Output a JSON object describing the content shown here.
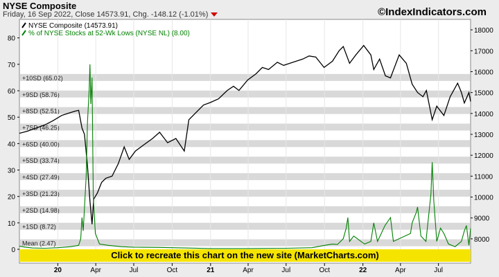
{
  "header": {
    "title": "NYSE Composite",
    "subtitle": "Friday, 16 Sep 2022, Close 14573.91, Chg. -148.12 (-1.01%)",
    "brand": "©IndexIndicators.com"
  },
  "banner": {
    "label": "Click to recreate this chart on the new site (MarketCharts.com)"
  },
  "colors": {
    "nyse": "#000000",
    "pct": "#008000",
    "band_fill": "#d9d9d9",
    "plot_bg": "#ffffff",
    "page_bg": "#ececec",
    "banner": "#f5e400",
    "down_arrow": "#d00000"
  },
  "chart_data": {
    "type": "line",
    "x_ticks": [
      "20",
      "Apr",
      "Jul",
      "Oct",
      "21",
      "Apr",
      "Jul",
      "Oct",
      "22",
      "Apr",
      "Jul"
    ],
    "x_tick_bold": [
      true,
      false,
      false,
      false,
      true,
      false,
      false,
      false,
      true,
      false,
      false
    ],
    "x_tick_dates": [
      "2020-01-01",
      "2020-04-01",
      "2020-07-01",
      "2020-10-01",
      "2021-01-01",
      "2021-04-01",
      "2021-07-01",
      "2021-10-01",
      "2022-01-01",
      "2022-04-01",
      "2022-07-01"
    ],
    "x_range": [
      "2019-10-01",
      "2022-09-16"
    ],
    "left_axis": {
      "ylim": [
        0,
        87
      ],
      "ticks": [
        0,
        10,
        20,
        30,
        40,
        50,
        60,
        70,
        80
      ]
    },
    "right_axis": {
      "ylim": [
        7500,
        18500
      ],
      "ticks": [
        8000,
        9000,
        10000,
        11000,
        12000,
        13000,
        14000,
        15000,
        16000,
        17000,
        18000
      ]
    },
    "legend": [
      {
        "label": "NYSE Composite (14573.91)",
        "color": "#000000"
      },
      {
        "label": "% of NYSE Stocks at 52-Wk Lows (NYSE NL) (8.00)",
        "color": "#008000"
      }
    ],
    "bands": [
      {
        "label": "Mean (2.47)",
        "value": 2.47
      },
      {
        "label": "+1SD (8.72)",
        "value": 8.72
      },
      {
        "label": "+2SD (14.98)",
        "value": 14.98
      },
      {
        "label": "+3SD (21.23)",
        "value": 21.23
      },
      {
        "label": "+4SD (27.49)",
        "value": 27.49
      },
      {
        "label": "+5SD (33.74)",
        "value": 33.74
      },
      {
        "label": "+6SD (40.00)",
        "value": 40.0
      },
      {
        "label": "+7SD (46.25)",
        "value": 46.25
      },
      {
        "label": "+8SD (52.51)",
        "value": 52.51
      },
      {
        "label": "+9SD (58.76)",
        "value": 58.76
      },
      {
        "label": "+10SD (65.02)",
        "value": 65.02
      }
    ],
    "series": [
      {
        "name": "NYSE Composite (14573.91)",
        "axis": "right",
        "points": [
          [
            "2019-10-01",
            13050
          ],
          [
            "2019-10-20",
            13150
          ],
          [
            "2019-11-10",
            13300
          ],
          [
            "2019-12-01",
            13450
          ],
          [
            "2019-12-20",
            13650
          ],
          [
            "2020-01-10",
            13900
          ],
          [
            "2020-01-25",
            14000
          ],
          [
            "2020-02-10",
            14100
          ],
          [
            "2020-02-20",
            14150
          ],
          [
            "2020-02-28",
            13300
          ],
          [
            "2020-03-05",
            13000
          ],
          [
            "2020-03-12",
            11500
          ],
          [
            "2020-03-18",
            9800
          ],
          [
            "2020-03-23",
            8700
          ],
          [
            "2020-03-27",
            9900
          ],
          [
            "2020-04-05",
            10200
          ],
          [
            "2020-04-15",
            10700
          ],
          [
            "2020-04-25",
            10900
          ],
          [
            "2020-05-10",
            11000
          ],
          [
            "2020-05-25",
            11600
          ],
          [
            "2020-06-08",
            12400
          ],
          [
            "2020-06-20",
            11800
          ],
          [
            "2020-07-05",
            12200
          ],
          [
            "2020-07-25",
            12500
          ],
          [
            "2020-08-15",
            12800
          ],
          [
            "2020-09-01",
            13100
          ],
          [
            "2020-09-20",
            12600
          ],
          [
            "2020-10-10",
            12800
          ],
          [
            "2020-10-30",
            12200
          ],
          [
            "2020-11-10",
            13700
          ],
          [
            "2020-11-25",
            14000
          ],
          [
            "2020-12-15",
            14400
          ],
          [
            "2020-12-31",
            14520
          ],
          [
            "2021-01-20",
            14700
          ],
          [
            "2021-02-10",
            15100
          ],
          [
            "2021-02-25",
            15300
          ],
          [
            "2021-03-10",
            15100
          ],
          [
            "2021-03-31",
            15600
          ],
          [
            "2021-04-20",
            15900
          ],
          [
            "2021-05-05",
            16200
          ],
          [
            "2021-05-20",
            16100
          ],
          [
            "2021-06-10",
            16450
          ],
          [
            "2021-06-25",
            16300
          ],
          [
            "2021-07-10",
            16400
          ],
          [
            "2021-07-25",
            16500
          ],
          [
            "2021-08-10",
            16600
          ],
          [
            "2021-08-25",
            16750
          ],
          [
            "2021-09-10",
            16700
          ],
          [
            "2021-09-30",
            16200
          ],
          [
            "2021-10-20",
            16500
          ],
          [
            "2021-11-05",
            17000
          ],
          [
            "2021-11-15",
            17200
          ],
          [
            "2021-11-30",
            16400
          ],
          [
            "2021-12-15",
            16800
          ],
          [
            "2022-01-03",
            17250
          ],
          [
            "2022-01-20",
            16800
          ],
          [
            "2022-01-27",
            16100
          ],
          [
            "2022-02-10",
            16600
          ],
          [
            "2022-02-24",
            15800
          ],
          [
            "2022-03-08",
            15700
          ],
          [
            "2022-03-29",
            16800
          ],
          [
            "2022-04-15",
            16400
          ],
          [
            "2022-04-29",
            15400
          ],
          [
            "2022-05-12",
            15000
          ],
          [
            "2022-05-25",
            14800
          ],
          [
            "2022-06-02",
            15100
          ],
          [
            "2022-06-16",
            13700
          ],
          [
            "2022-06-27",
            14350
          ],
          [
            "2022-07-14",
            13900
          ],
          [
            "2022-07-29",
            14800
          ],
          [
            "2022-08-16",
            15450
          ],
          [
            "2022-08-25",
            15000
          ],
          [
            "2022-09-01",
            14500
          ],
          [
            "2022-09-12",
            15000
          ],
          [
            "2022-09-16",
            14574
          ]
        ]
      },
      {
        "name": "% of NYSE Stocks at 52-Wk Lows (NYSE NL) (8.00)",
        "axis": "left",
        "points": [
          [
            "2019-10-01",
            1.2
          ],
          [
            "2019-10-15",
            0.8
          ],
          [
            "2019-11-01",
            0.5
          ],
          [
            "2019-12-01",
            0.4
          ],
          [
            "2020-01-01",
            0.6
          ],
          [
            "2020-02-01",
            1.0
          ],
          [
            "2020-02-20",
            1.5
          ],
          [
            "2020-02-25",
            4
          ],
          [
            "2020-02-28",
            12
          ],
          [
            "2020-03-02",
            7
          ],
          [
            "2020-03-09",
            28
          ],
          [
            "2020-03-12",
            48
          ],
          [
            "2020-03-16",
            60
          ],
          [
            "2020-03-18",
            70
          ],
          [
            "2020-03-20",
            55
          ],
          [
            "2020-03-23",
            65
          ],
          [
            "2020-03-26",
            20
          ],
          [
            "2020-03-31",
            6
          ],
          [
            "2020-04-10",
            2
          ],
          [
            "2020-05-01",
            1.5
          ],
          [
            "2020-06-01",
            1.0
          ],
          [
            "2020-07-01",
            0.8
          ],
          [
            "2020-09-01",
            0.7
          ],
          [
            "2020-11-01",
            0.5
          ],
          [
            "2021-01-01",
            0.3
          ],
          [
            "2021-04-01",
            0.3
          ],
          [
            "2021-07-01",
            0.4
          ],
          [
            "2021-09-01",
            0.6
          ],
          [
            "2021-10-01",
            1.5
          ],
          [
            "2021-10-20",
            2
          ],
          [
            "2021-11-01",
            1.8
          ],
          [
            "2021-11-15",
            4
          ],
          [
            "2021-11-22",
            8
          ],
          [
            "2021-11-26",
            12
          ],
          [
            "2021-11-30",
            3
          ],
          [
            "2021-12-10",
            5
          ],
          [
            "2022-01-05",
            2
          ],
          [
            "2022-01-20",
            3
          ],
          [
            "2022-01-27",
            10
          ],
          [
            "2022-02-05",
            3
          ],
          [
            "2022-02-23",
            9
          ],
          [
            "2022-03-08",
            12
          ],
          [
            "2022-03-15",
            3
          ],
          [
            "2022-04-25",
            6
          ],
          [
            "2022-04-29",
            10
          ],
          [
            "2022-05-09",
            14
          ],
          [
            "2022-05-12",
            16
          ],
          [
            "2022-05-20",
            5
          ],
          [
            "2022-06-01",
            3
          ],
          [
            "2022-06-13",
            21
          ],
          [
            "2022-06-16",
            33
          ],
          [
            "2022-06-20",
            18
          ],
          [
            "2022-06-27",
            3
          ],
          [
            "2022-07-06",
            8
          ],
          [
            "2022-07-14",
            6
          ],
          [
            "2022-07-25",
            2
          ],
          [
            "2022-08-10",
            1
          ],
          [
            "2022-08-25",
            3
          ],
          [
            "2022-09-01",
            7
          ],
          [
            "2022-09-06",
            9
          ],
          [
            "2022-09-12",
            1.5
          ],
          [
            "2022-09-16",
            8
          ]
        ]
      }
    ]
  }
}
